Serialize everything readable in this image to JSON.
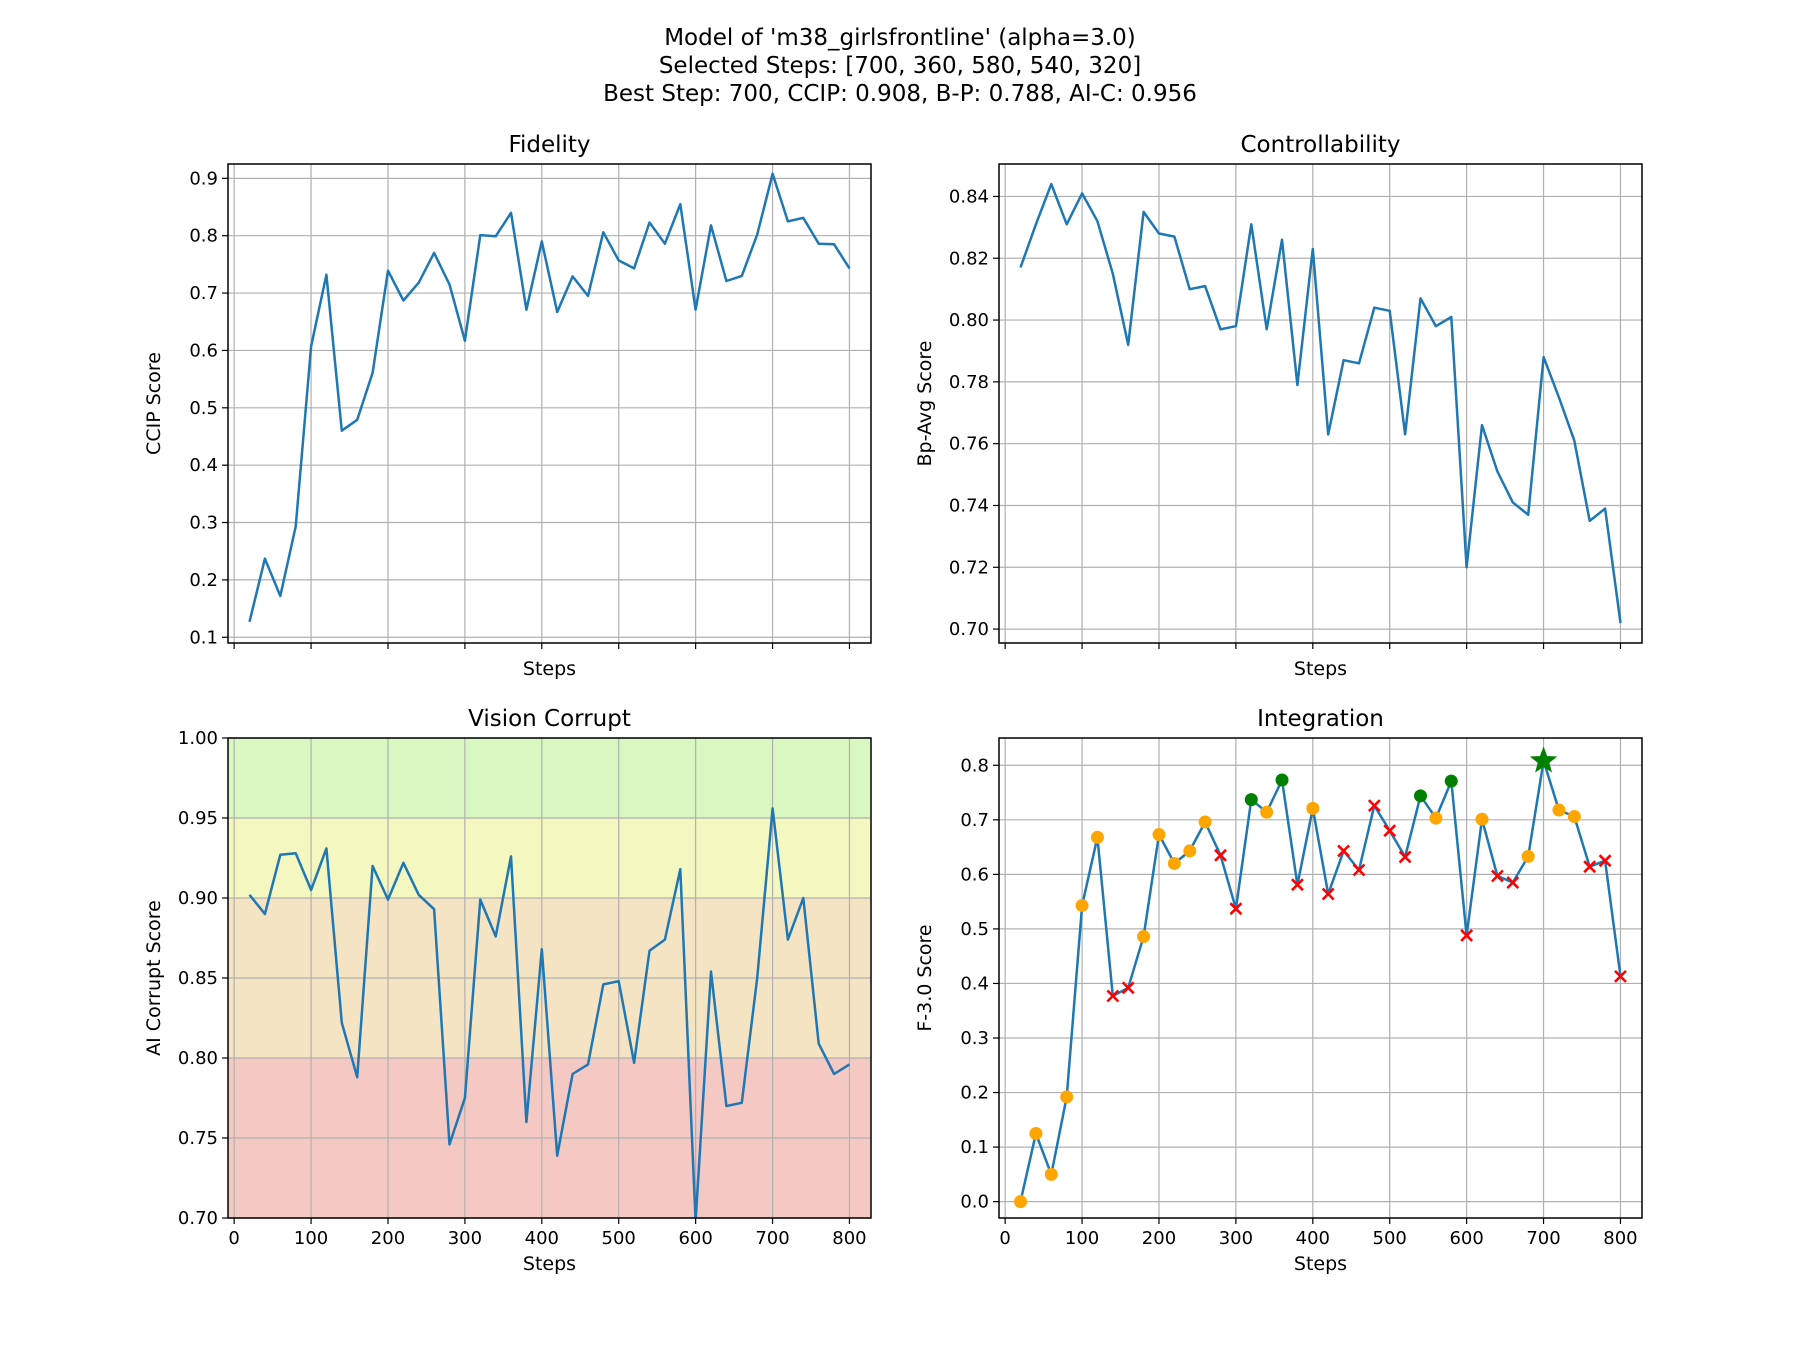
{
  "figure": {
    "title_lines": [
      "Model of 'm38_girlsfrontline' (alpha=3.0)",
      "Selected Steps: [700, 360, 580, 540, 320]",
      "Best Step: 700, CCIP: 0.908, B-P: 0.788, AI-C: 0.956"
    ]
  },
  "colors": {
    "line": "#1f77b4",
    "normal_marker": "#ffa500",
    "selected_marker": "#008000",
    "rejected_marker": "#ff0000",
    "best_marker": "#008000",
    "band_green": "#d9f7c0",
    "band_yellow": "#f4f7c0",
    "band_orange": "#f5e4c3",
    "band_red": "#f5c9c3"
  },
  "chart_data": [
    {
      "id": "fidelity",
      "type": "line",
      "title": "Fidelity",
      "xlabel": "Steps",
      "ylabel": "CCIP Score",
      "xlim": [
        -8,
        828
      ],
      "ylim": [
        0.09,
        0.925
      ],
      "xticks": [
        0,
        100,
        200,
        300,
        400,
        500,
        600,
        700,
        800
      ],
      "show_xtick_labels": false,
      "yticks": [
        0.1,
        0.2,
        0.3,
        0.4,
        0.5,
        0.6,
        0.7,
        0.8,
        0.9
      ],
      "ytick_labels": [
        "0.1",
        "0.2",
        "0.3",
        "0.4",
        "0.5",
        "0.6",
        "0.7",
        "0.8",
        "0.9"
      ],
      "grid": true,
      "x": [
        20,
        40,
        60,
        80,
        100,
        120,
        140,
        160,
        180,
        200,
        220,
        240,
        260,
        280,
        300,
        320,
        340,
        360,
        380,
        400,
        420,
        440,
        460,
        480,
        500,
        520,
        540,
        560,
        580,
        600,
        620,
        640,
        660,
        680,
        700,
        720,
        740,
        760,
        780,
        800
      ],
      "y": [
        0.127,
        0.237,
        0.172,
        0.293,
        0.607,
        0.732,
        0.46,
        0.479,
        0.561,
        0.739,
        0.687,
        0.718,
        0.77,
        0.715,
        0.617,
        0.801,
        0.799,
        0.84,
        0.671,
        0.79,
        0.667,
        0.729,
        0.695,
        0.806,
        0.757,
        0.743,
        0.823,
        0.786,
        0.855,
        0.671,
        0.818,
        0.721,
        0.73,
        0.802,
        0.908,
        0.825,
        0.831,
        0.786,
        0.785,
        0.743
      ]
    },
    {
      "id": "controllability",
      "type": "line",
      "title": "Controllability",
      "xlabel": "Steps",
      "ylabel": "Bp-Avg Score",
      "xlim": [
        -8,
        828
      ],
      "ylim": [
        0.6955,
        0.8505
      ],
      "xticks": [
        0,
        100,
        200,
        300,
        400,
        500,
        600,
        700,
        800
      ],
      "show_xtick_labels": false,
      "yticks": [
        0.7,
        0.72,
        0.74,
        0.76,
        0.78,
        0.8,
        0.82,
        0.84
      ],
      "ytick_labels": [
        "0.70",
        "0.72",
        "0.74",
        "0.76",
        "0.78",
        "0.80",
        "0.82",
        "0.84"
      ],
      "grid": true,
      "x": [
        20,
        40,
        60,
        80,
        100,
        120,
        140,
        160,
        180,
        200,
        220,
        240,
        260,
        280,
        300,
        320,
        340,
        360,
        380,
        400,
        420,
        440,
        460,
        480,
        500,
        520,
        540,
        560,
        580,
        600,
        620,
        640,
        660,
        680,
        700,
        720,
        740,
        760,
        780,
        800
      ],
      "y": [
        0.817,
        0.831,
        0.844,
        0.831,
        0.841,
        0.832,
        0.815,
        0.792,
        0.835,
        0.828,
        0.827,
        0.81,
        0.811,
        0.797,
        0.798,
        0.831,
        0.797,
        0.826,
        0.779,
        0.823,
        0.763,
        0.787,
        0.786,
        0.804,
        0.803,
        0.763,
        0.807,
        0.798,
        0.801,
        0.72,
        0.766,
        0.751,
        0.741,
        0.737,
        0.788,
        0.775,
        0.761,
        0.735,
        0.739,
        0.702
      ]
    },
    {
      "id": "vision_corrupt",
      "type": "line",
      "title": "Vision Corrupt",
      "xlabel": "Steps",
      "ylabel": "AI Corrupt Score",
      "xlim": [
        -8,
        828
      ],
      "ylim": [
        0.7,
        1.0
      ],
      "xticks": [
        0,
        100,
        200,
        300,
        400,
        500,
        600,
        700,
        800
      ],
      "xtick_labels": [
        "0",
        "100",
        "200",
        "300",
        "400",
        "500",
        "600",
        "700",
        "800"
      ],
      "show_xtick_labels": true,
      "yticks": [
        0.7,
        0.75,
        0.8,
        0.85,
        0.9,
        0.95,
        1.0
      ],
      "ytick_labels": [
        "0.70",
        "0.75",
        "0.80",
        "0.85",
        "0.90",
        "0.95",
        "1.00"
      ],
      "grid": true,
      "bands": [
        {
          "from": 0.95,
          "to": 1.0,
          "color_key": "band_green"
        },
        {
          "from": 0.9,
          "to": 0.95,
          "color_key": "band_yellow"
        },
        {
          "from": 0.8,
          "to": 0.9,
          "color_key": "band_orange"
        },
        {
          "from": 0.7,
          "to": 0.8,
          "color_key": "band_red"
        }
      ],
      "x": [
        20,
        40,
        60,
        80,
        100,
        120,
        140,
        160,
        180,
        200,
        220,
        240,
        260,
        280,
        300,
        320,
        340,
        360,
        380,
        400,
        420,
        440,
        460,
        480,
        500,
        520,
        540,
        560,
        580,
        600,
        620,
        640,
        660,
        680,
        700,
        720,
        740,
        760,
        780,
        800
      ],
      "y": [
        0.902,
        0.89,
        0.927,
        0.928,
        0.905,
        0.931,
        0.822,
        0.788,
        0.92,
        0.899,
        0.922,
        0.902,
        0.893,
        0.746,
        0.775,
        0.899,
        0.876,
        0.926,
        0.76,
        0.868,
        0.739,
        0.79,
        0.796,
        0.846,
        0.848,
        0.797,
        0.867,
        0.874,
        0.918,
        0.698,
        0.854,
        0.77,
        0.772,
        0.85,
        0.956,
        0.874,
        0.9,
        0.809,
        0.79,
        0.796
      ]
    },
    {
      "id": "integration",
      "type": "line",
      "title": "Integration",
      "xlabel": "Steps",
      "ylabel": "F-3.0 Score",
      "xlim": [
        -8,
        828
      ],
      "ylim": [
        -0.03,
        0.85
      ],
      "xticks": [
        0,
        100,
        200,
        300,
        400,
        500,
        600,
        700,
        800
      ],
      "xtick_labels": [
        "0",
        "100",
        "200",
        "300",
        "400",
        "500",
        "600",
        "700",
        "800"
      ],
      "show_xtick_labels": true,
      "yticks": [
        0.0,
        0.1,
        0.2,
        0.3,
        0.4,
        0.5,
        0.6,
        0.7,
        0.8
      ],
      "ytick_labels": [
        "0.0",
        "0.1",
        "0.2",
        "0.3",
        "0.4",
        "0.5",
        "0.6",
        "0.7",
        "0.8"
      ],
      "grid": true,
      "x": [
        20,
        40,
        60,
        80,
        100,
        120,
        140,
        160,
        180,
        200,
        220,
        240,
        260,
        280,
        300,
        320,
        340,
        360,
        380,
        400,
        420,
        440,
        460,
        480,
        500,
        520,
        540,
        560,
        580,
        600,
        620,
        640,
        660,
        680,
        700,
        720,
        740,
        760,
        780,
        800
      ],
      "y": [
        0.0,
        0.125,
        0.05,
        0.192,
        0.543,
        0.668,
        0.377,
        0.392,
        0.486,
        0.673,
        0.62,
        0.643,
        0.696,
        0.635,
        0.537,
        0.737,
        0.714,
        0.773,
        0.581,
        0.721,
        0.564,
        0.643,
        0.608,
        0.726,
        0.68,
        0.632,
        0.744,
        0.703,
        0.771,
        0.488,
        0.701,
        0.597,
        0.585,
        0.633,
        0.808,
        0.718,
        0.706,
        0.614,
        0.625,
        0.413
      ],
      "marker_types": [
        "normal",
        "normal",
        "normal",
        "normal",
        "normal",
        "normal",
        "rejected",
        "rejected",
        "normal",
        "normal",
        "normal",
        "normal",
        "normal",
        "rejected",
        "rejected",
        "selected",
        "normal",
        "selected",
        "rejected",
        "normal",
        "rejected",
        "rejected",
        "rejected",
        "rejected",
        "rejected",
        "rejected",
        "selected",
        "normal",
        "selected",
        "rejected",
        "normal",
        "rejected",
        "rejected",
        "normal",
        "best",
        "normal",
        "normal",
        "rejected",
        "rejected",
        "rejected"
      ]
    }
  ]
}
